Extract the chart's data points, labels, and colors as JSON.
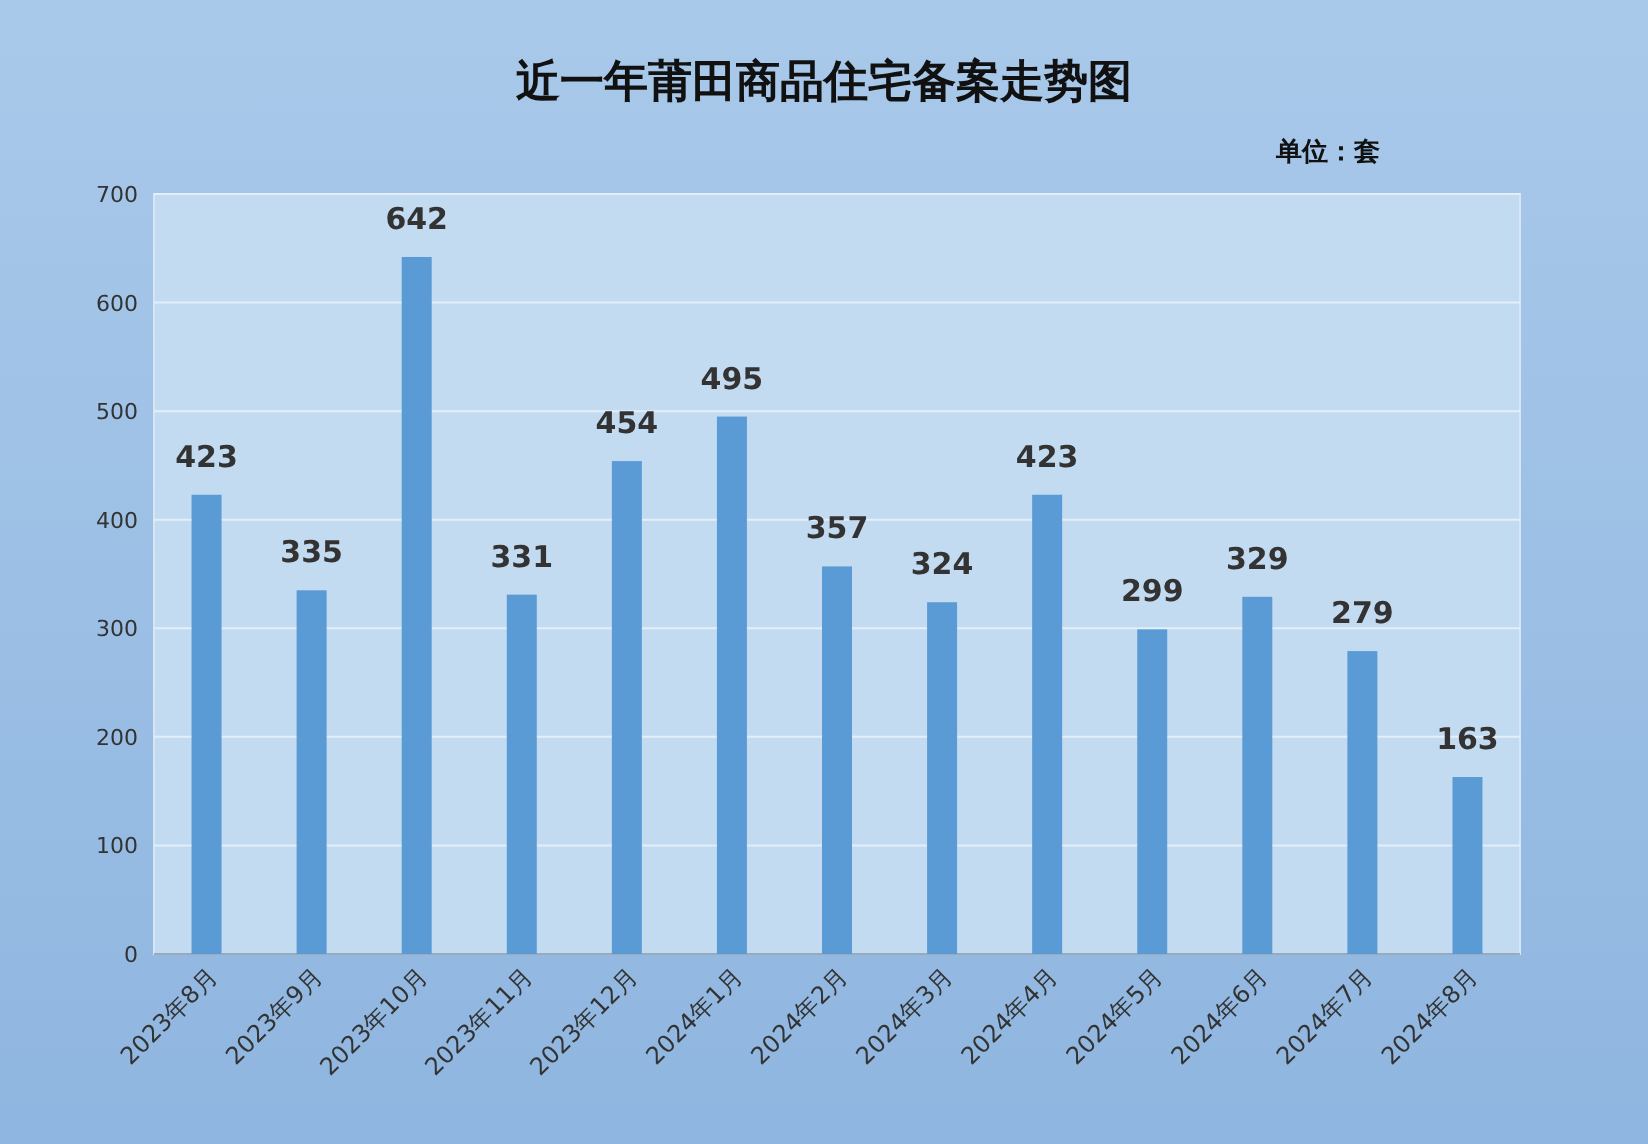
{
  "chart_data": {
    "type": "bar",
    "title": "近一年莆田商品住宅备案走势图",
    "subtitle": "单位：套",
    "categories": [
      "2023年8月",
      "2023年9月",
      "2023年10月",
      "2023年11月",
      "2023年12月",
      "2024年1月",
      "2024年2月",
      "2024年3月",
      "2024年4月",
      "2024年5月",
      "2024年6月",
      "2024年7月",
      "2024年8月"
    ],
    "values": [
      423,
      335,
      642,
      331,
      454,
      495,
      357,
      324,
      423,
      299,
      329,
      279,
      163
    ],
    "color": "#5b9bd5",
    "ylim": [
      0,
      700
    ],
    "yticks": [
      0,
      100,
      200,
      300,
      400,
      500,
      600,
      700
    ],
    "grid": "y",
    "data_labels": true
  }
}
